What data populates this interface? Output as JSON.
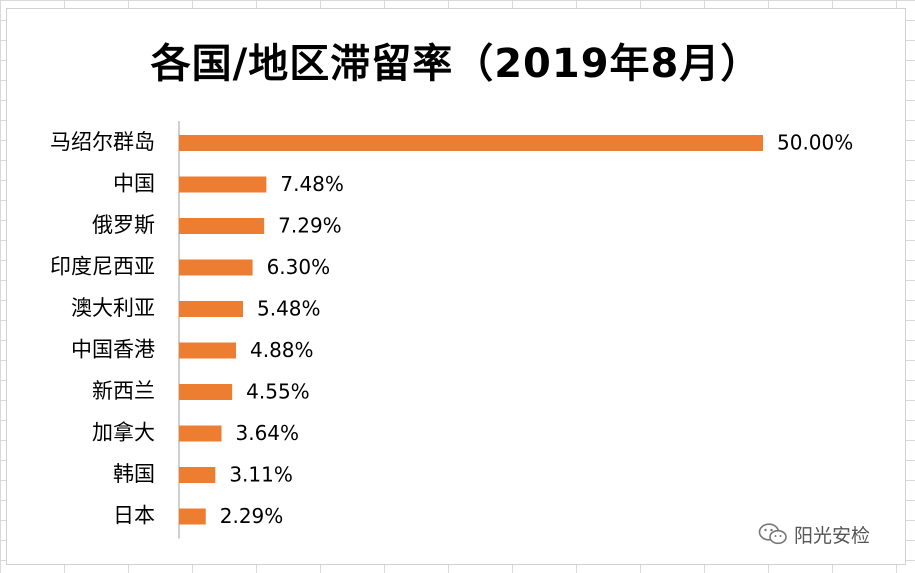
{
  "chart_data": {
    "type": "bar",
    "orientation": "horizontal",
    "title": "各国/地区滞留率（2019年8月）",
    "categories": [
      "马绍尔群岛",
      "中国",
      "俄罗斯",
      "印度尼西亚",
      "澳大利亚",
      "中国香港",
      "新西兰",
      "加拿大",
      "韩国",
      "日本"
    ],
    "values": [
      50.0,
      7.48,
      7.29,
      6.3,
      5.48,
      4.88,
      4.55,
      3.64,
      3.11,
      2.29
    ],
    "value_labels": [
      "50.00%",
      "7.48%",
      "7.29%",
      "6.30%",
      "5.48%",
      "4.88%",
      "4.55%",
      "3.64%",
      "3.11%",
      "2.29%"
    ],
    "xlim": [
      0,
      50
    ],
    "grid": false,
    "bar_color": "#ED7D31",
    "axis_color": "#BFBFBF"
  },
  "watermark": {
    "icon": "wechat-icon",
    "text": "阳光安检"
  }
}
